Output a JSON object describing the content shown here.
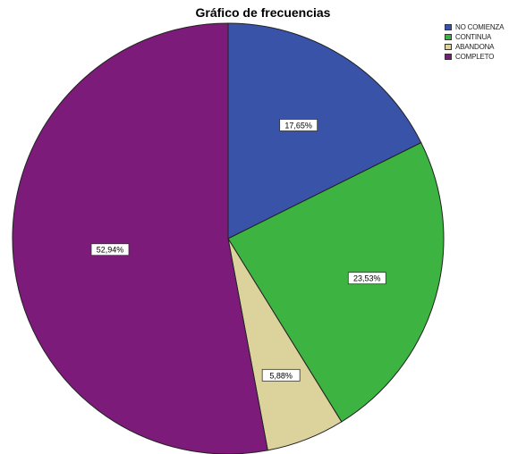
{
  "chart_data": {
    "type": "pie",
    "title": "Gráfico de frecuencias",
    "legend_position": "top-right",
    "slices": [
      {
        "label": "NO COMIENZA",
        "value": 17.65,
        "display": "17,65%",
        "color": "#3853a8"
      },
      {
        "label": "CONTINUA",
        "value": 23.53,
        "display": "23,53%",
        "color": "#3db441"
      },
      {
        "label": "ABANDONA",
        "value": 5.88,
        "display": "5,88%",
        "color": "#dcd39c"
      },
      {
        "label": "COMPLETO",
        "value": 52.94,
        "display": "52,94%",
        "color": "#7d1b7a"
      }
    ]
  }
}
